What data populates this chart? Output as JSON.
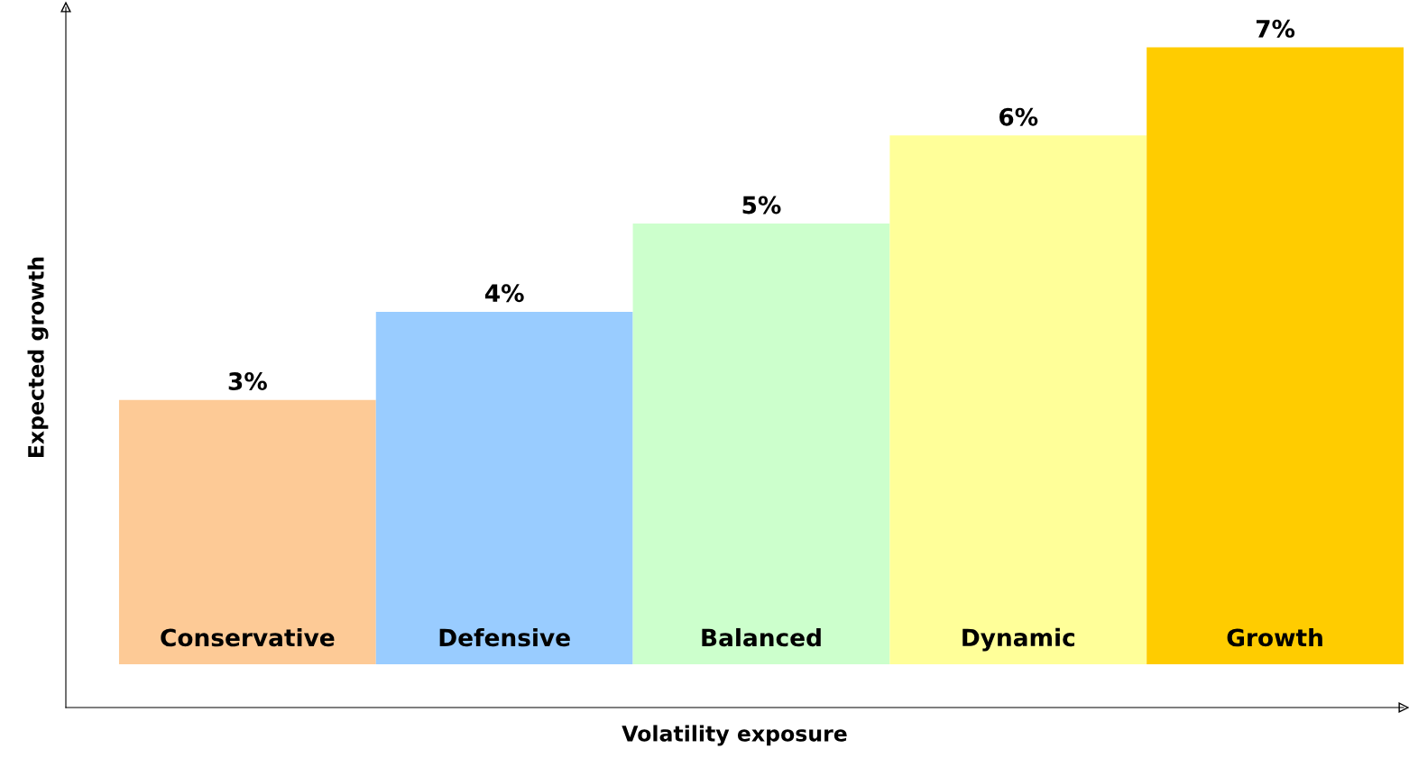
{
  "chart_data": {
    "type": "bar",
    "xlabel": "Volatility exposure",
    "ylabel": "Expected growth",
    "categories": [
      "Conservative",
      "Defensive",
      "Balanced",
      "Dynamic",
      "Growth"
    ],
    "colors": [
      "#fdca96",
      "#99ccff",
      "#ccffcc",
      "#ffff99",
      "#ffcc00"
    ],
    "values": [
      3,
      4,
      5,
      6,
      7
    ],
    "value_labels": [
      "3%",
      "4%",
      "5%",
      "6%",
      "7%"
    ]
  }
}
